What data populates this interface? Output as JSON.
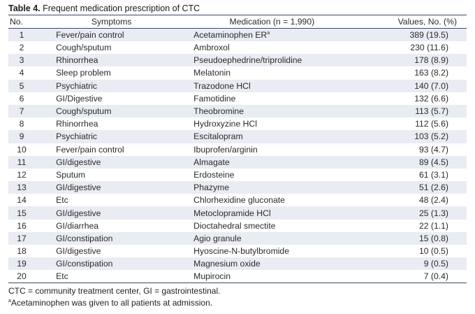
{
  "caption": {
    "label": "Table 4.",
    "text": "Frequent medication prescription of CTC"
  },
  "headers": {
    "no": "No.",
    "symptoms": "Symptoms",
    "medication": "Medication (n = 1,990)",
    "values": "Values, No. (%)"
  },
  "rows": [
    {
      "no": "1",
      "symptoms": "Fever/pain control",
      "medication": "Acetaminophen ER",
      "sup": "a",
      "value": "389 (19.5)"
    },
    {
      "no": "2",
      "symptoms": "Cough/sputum",
      "medication": "Ambroxol",
      "sup": "",
      "value": "230 (11.6)"
    },
    {
      "no": "3",
      "symptoms": "Rhinorrhea",
      "medication": "Pseudoephedrine/triprolidine",
      "sup": "",
      "value": "178 (8.9)"
    },
    {
      "no": "4",
      "symptoms": "Sleep problem",
      "medication": "Melatonin",
      "sup": "",
      "value": "163 (8.2)"
    },
    {
      "no": "5",
      "symptoms": "Psychiatric",
      "medication": "Trazodone HCl",
      "sup": "",
      "value": "140 (7.0)"
    },
    {
      "no": "6",
      "symptoms": "GI/Digestive",
      "medication": "Famotidine",
      "sup": "",
      "value": "132 (6.6)"
    },
    {
      "no": "7",
      "symptoms": "Cough/sputum",
      "medication": "Theobromine",
      "sup": "",
      "value": "113 (5.7)"
    },
    {
      "no": "8",
      "symptoms": "Rhinorrhea",
      "medication": "Hydroxyzine HCl",
      "sup": "",
      "value": "112 (5.6)"
    },
    {
      "no": "9",
      "symptoms": "Psychiatric",
      "medication": "Escitalopram",
      "sup": "",
      "value": "103 (5.2)"
    },
    {
      "no": "10",
      "symptoms": "Fever/pain control",
      "medication": "Ibuprofen/arginin",
      "sup": "",
      "value": "93 (4.7)"
    },
    {
      "no": "11",
      "symptoms": "GI/digestive",
      "medication": "Almagate",
      "sup": "",
      "value": "89 (4.5)"
    },
    {
      "no": "12",
      "symptoms": "Sputum",
      "medication": "Erdosteine",
      "sup": "",
      "value": "61 (3.1)"
    },
    {
      "no": "13",
      "symptoms": "GI/digestive",
      "medication": "Phazyme",
      "sup": "",
      "value": "51 (2.6)"
    },
    {
      "no": "14",
      "symptoms": "Etc",
      "medication": "Chlorhexidine gluconate",
      "sup": "",
      "value": "48 (2.4)"
    },
    {
      "no": "15",
      "symptoms": "GI/digestive",
      "medication": "Metoclopramide HCl",
      "sup": "",
      "value": "25 (1.3)"
    },
    {
      "no": "16",
      "symptoms": "GI/diarrhea",
      "medication": "Dioctahedral smectite",
      "sup": "",
      "value": "22 (1.1)"
    },
    {
      "no": "17",
      "symptoms": "GI/constipation",
      "medication": "Agio granule",
      "sup": "",
      "value": "15 (0.8)"
    },
    {
      "no": "18",
      "symptoms": "GI/digestive",
      "medication": "Hyoscine-N-butylbromide",
      "sup": "",
      "value": "10 (0.5)"
    },
    {
      "no": "19",
      "symptoms": "GI/constipation",
      "medication": "Magnesium oxide",
      "sup": "",
      "value": "9 (0.5)"
    },
    {
      "no": "20",
      "symptoms": "Etc",
      "medication": "Mupirocin",
      "sup": "",
      "value": "7 (0.4)"
    }
  ],
  "footnotes": {
    "abbreviations": "CTC = community treatment center, GI = gastrointestinal.",
    "a_mark": "a",
    "a_text": "Acetaminophen was given to all patients at admission."
  }
}
